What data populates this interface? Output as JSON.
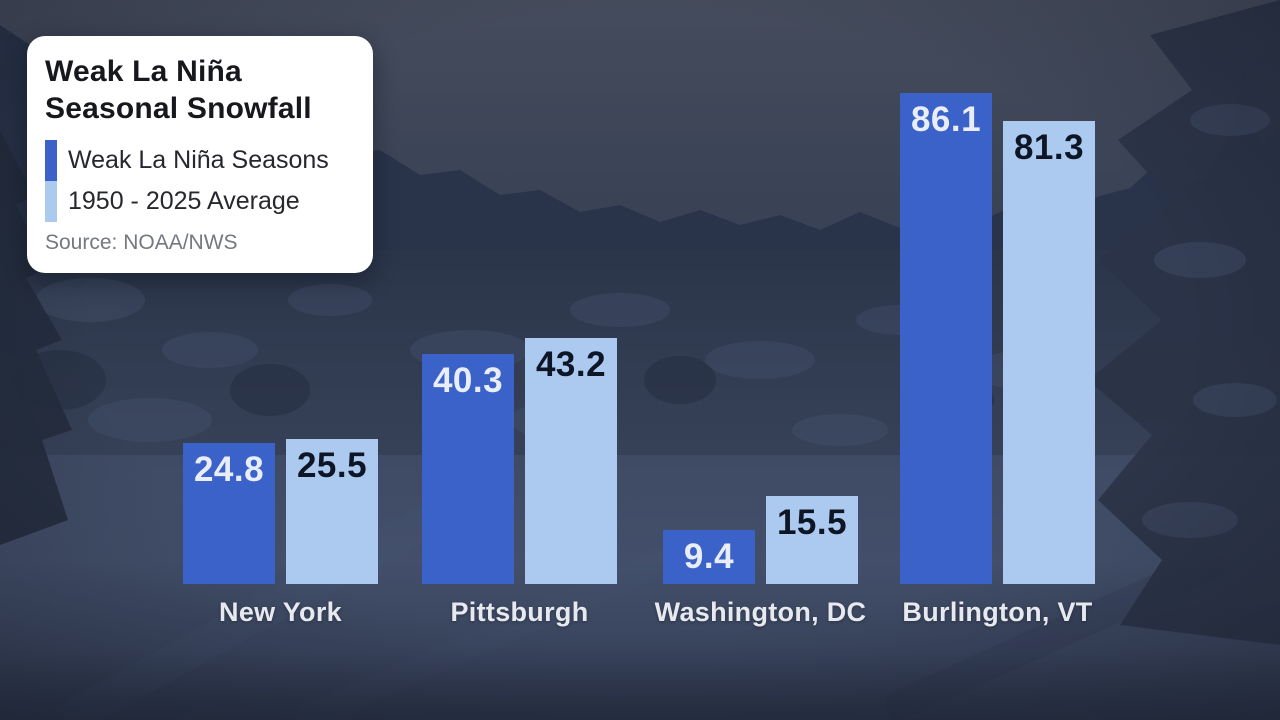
{
  "card": {
    "title_line1": "Weak La Niña",
    "title_line2": "Seasonal Snowfall",
    "legend": [
      {
        "label": "Weak La Niña Seasons",
        "color": "#3B62C8",
        "value_text_color": "#E8EDF8"
      },
      {
        "label": "1950 - 2025 Average",
        "color": "#ACC9F0",
        "value_text_color": "#0E1625"
      }
    ],
    "source": "Source: NOAA/NWS"
  },
  "chart_data": {
    "type": "bar",
    "title": "Weak La Niña Seasonal Snowfall",
    "categories": [
      "New York",
      "Pittsburgh",
      "Washington, DC",
      "Burlington, VT"
    ],
    "series": [
      {
        "name": "Weak La Niña Seasons",
        "color": "#3B62C8",
        "values": [
          24.8,
          40.3,
          9.4,
          86.1
        ]
      },
      {
        "name": "1950 - 2025 Average",
        "color": "#ACC9F0",
        "values": [
          25.5,
          43.2,
          15.5,
          81.3
        ]
      }
    ],
    "value_labels": true,
    "grid": false,
    "xlabel": "",
    "ylabel": "",
    "ylim": [
      0,
      100
    ],
    "legend_position": "top-left card",
    "source": "Source: NOAA/NWS"
  }
}
